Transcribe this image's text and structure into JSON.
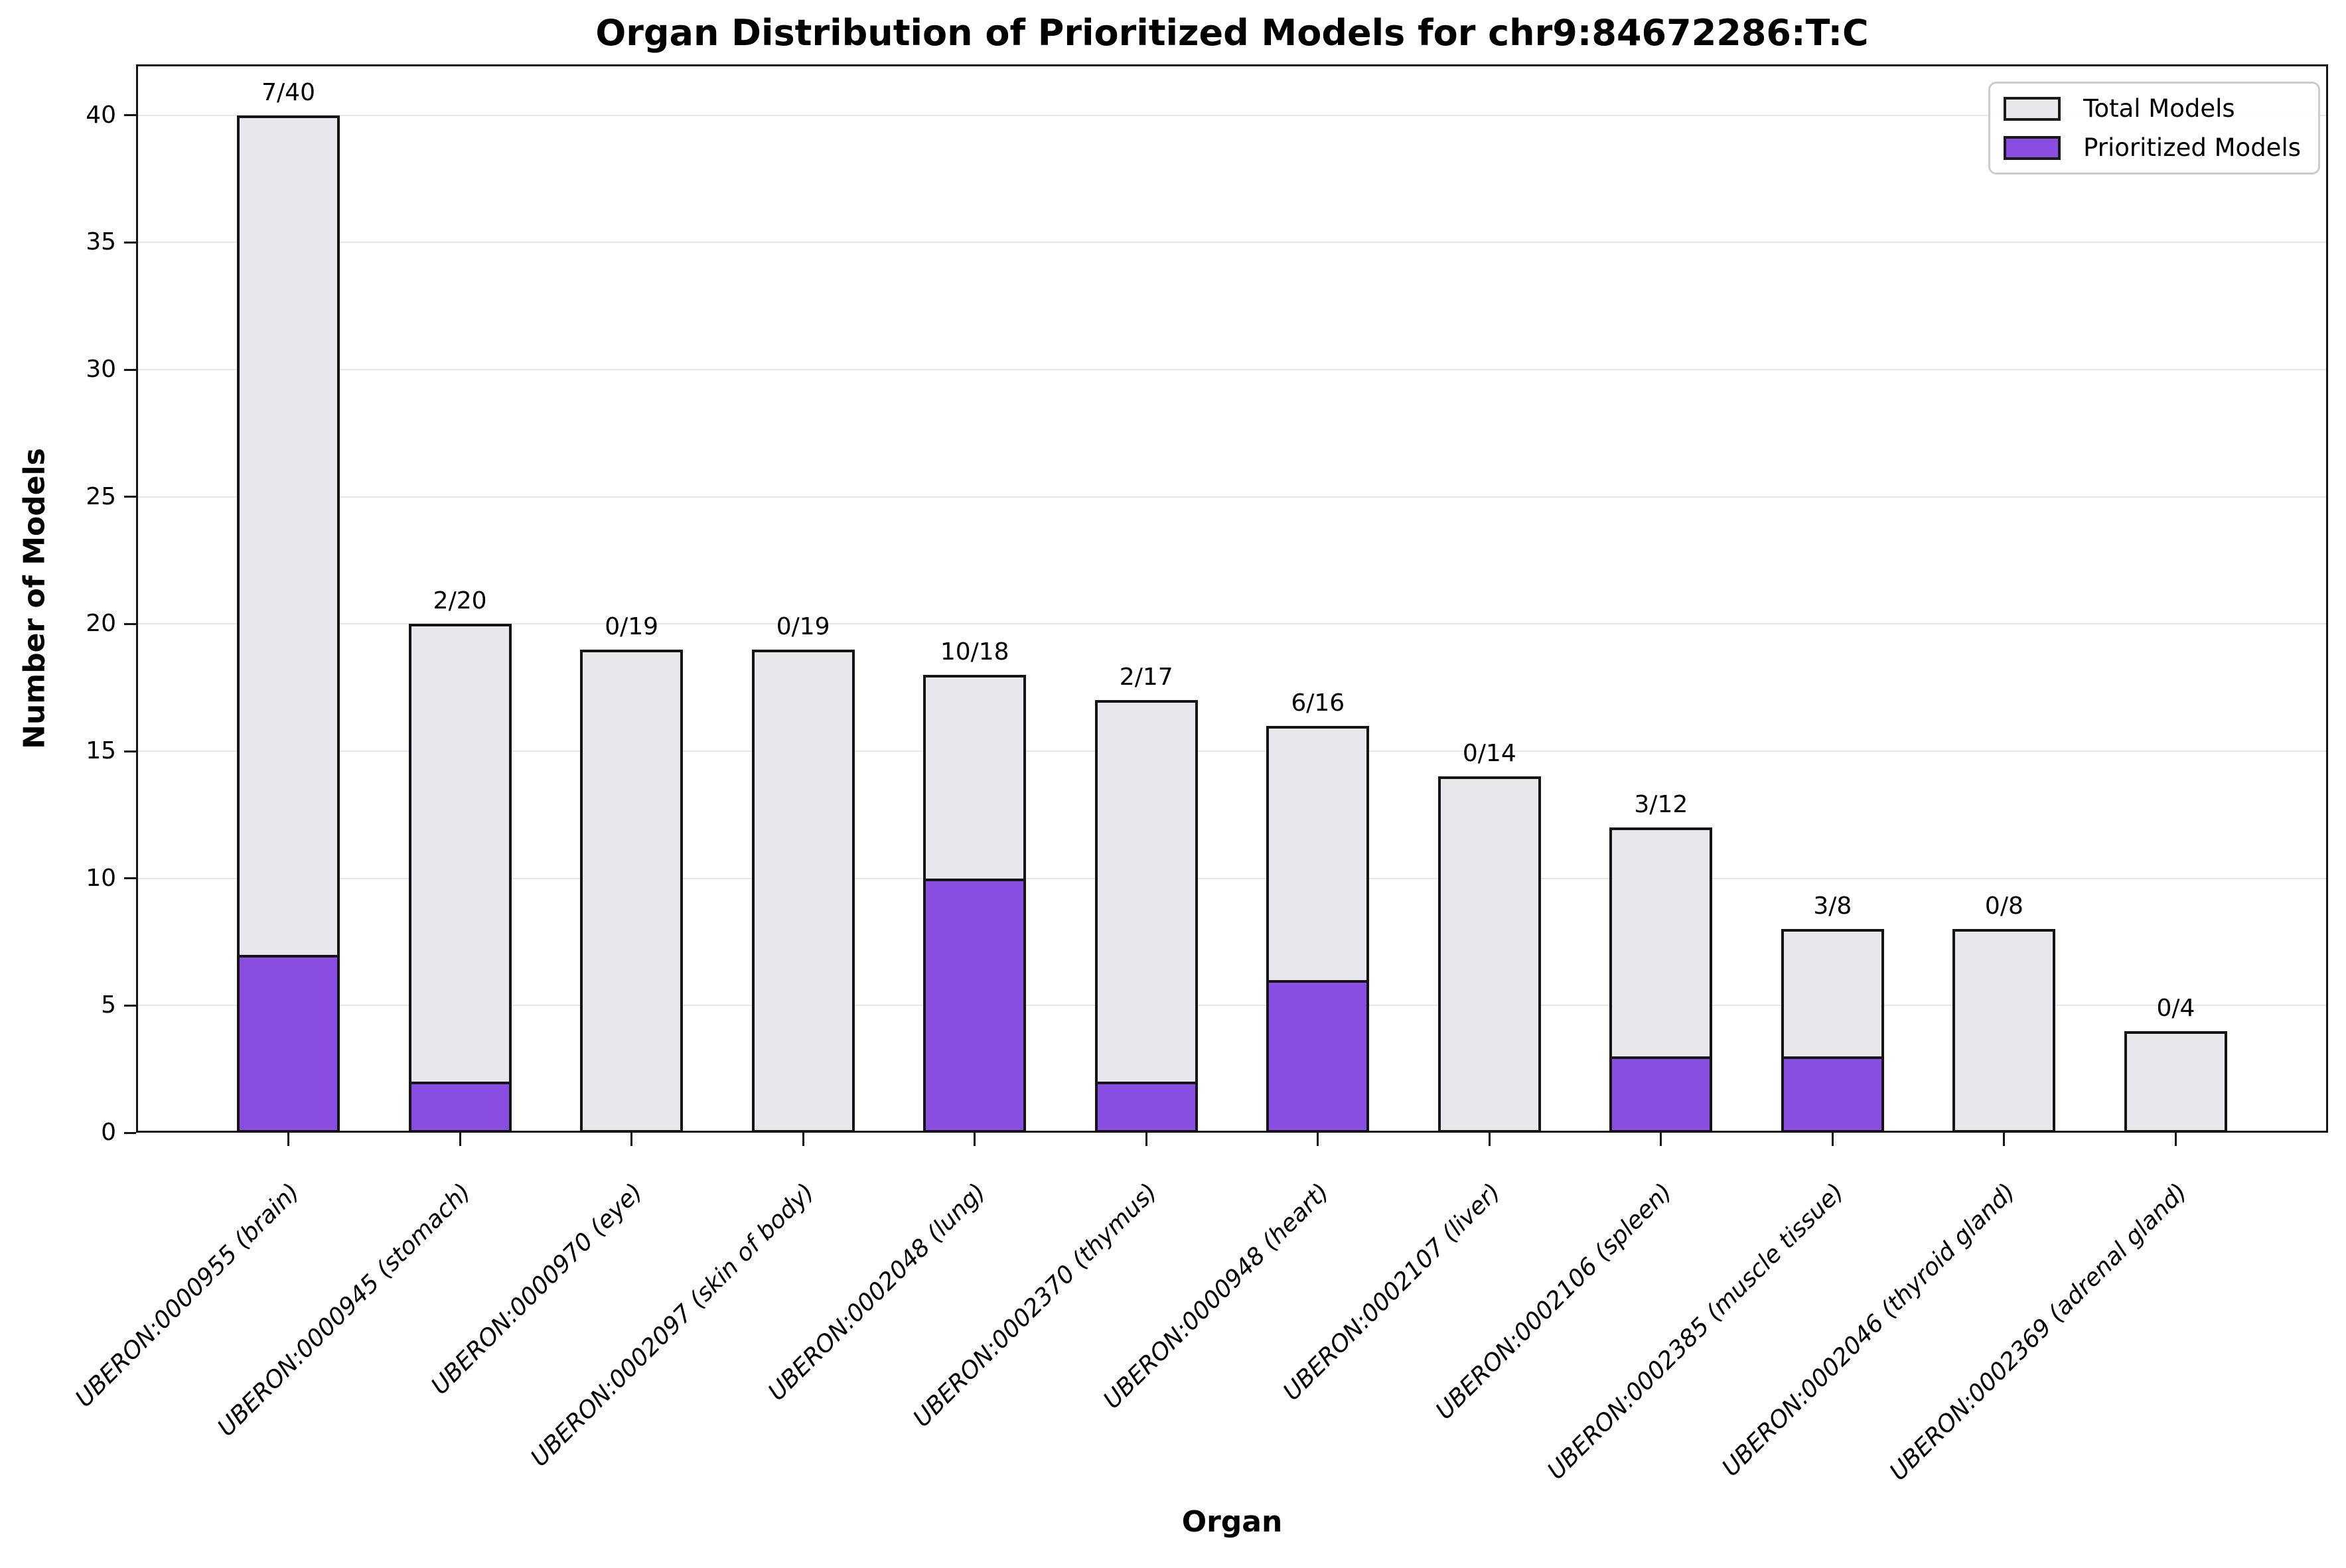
{
  "chart_data": {
    "type": "bar",
    "title": "Organ Distribution of Prioritized Models for chr9:84672286:T:C",
    "xlabel": "Organ",
    "ylabel": "Number of Models",
    "categories": [
      "UBERON:0000955 (brain)",
      "UBERON:0000945 (stomach)",
      "UBERON:0000970 (eye)",
      "UBERON:0002097 (skin of body)",
      "UBERON:0002048 (lung)",
      "UBERON:0002370 (thymus)",
      "UBERON:0000948 (heart)",
      "UBERON:0002107 (liver)",
      "UBERON:0002106 (spleen)",
      "UBERON:0002385 (muscle tissue)",
      "UBERON:0002046 (thyroid gland)",
      "UBERON:0002369 (adrenal gland)"
    ],
    "series": [
      {
        "name": "Total Models",
        "values": [
          40,
          20,
          19,
          19,
          18,
          17,
          16,
          14,
          12,
          8,
          8,
          4
        ]
      },
      {
        "name": "Prioritized Models",
        "values": [
          7,
          2,
          0,
          0,
          10,
          2,
          6,
          0,
          3,
          3,
          0,
          0
        ]
      }
    ],
    "annotations": [
      "7/40",
      "2/20",
      "0/19",
      "0/19",
      "10/18",
      "2/17",
      "6/16",
      "0/14",
      "3/12",
      "3/8",
      "0/8",
      "0/4"
    ],
    "yticks": [
      0,
      5,
      10,
      15,
      20,
      25,
      30,
      35,
      40
    ],
    "ylim": [
      0,
      42
    ],
    "grid": "horizontal",
    "legend_position": "top-right",
    "colors": {
      "total_fill": "#e8e8ec",
      "prioritized_fill": "#8a4de2",
      "edge": "#151515"
    }
  }
}
